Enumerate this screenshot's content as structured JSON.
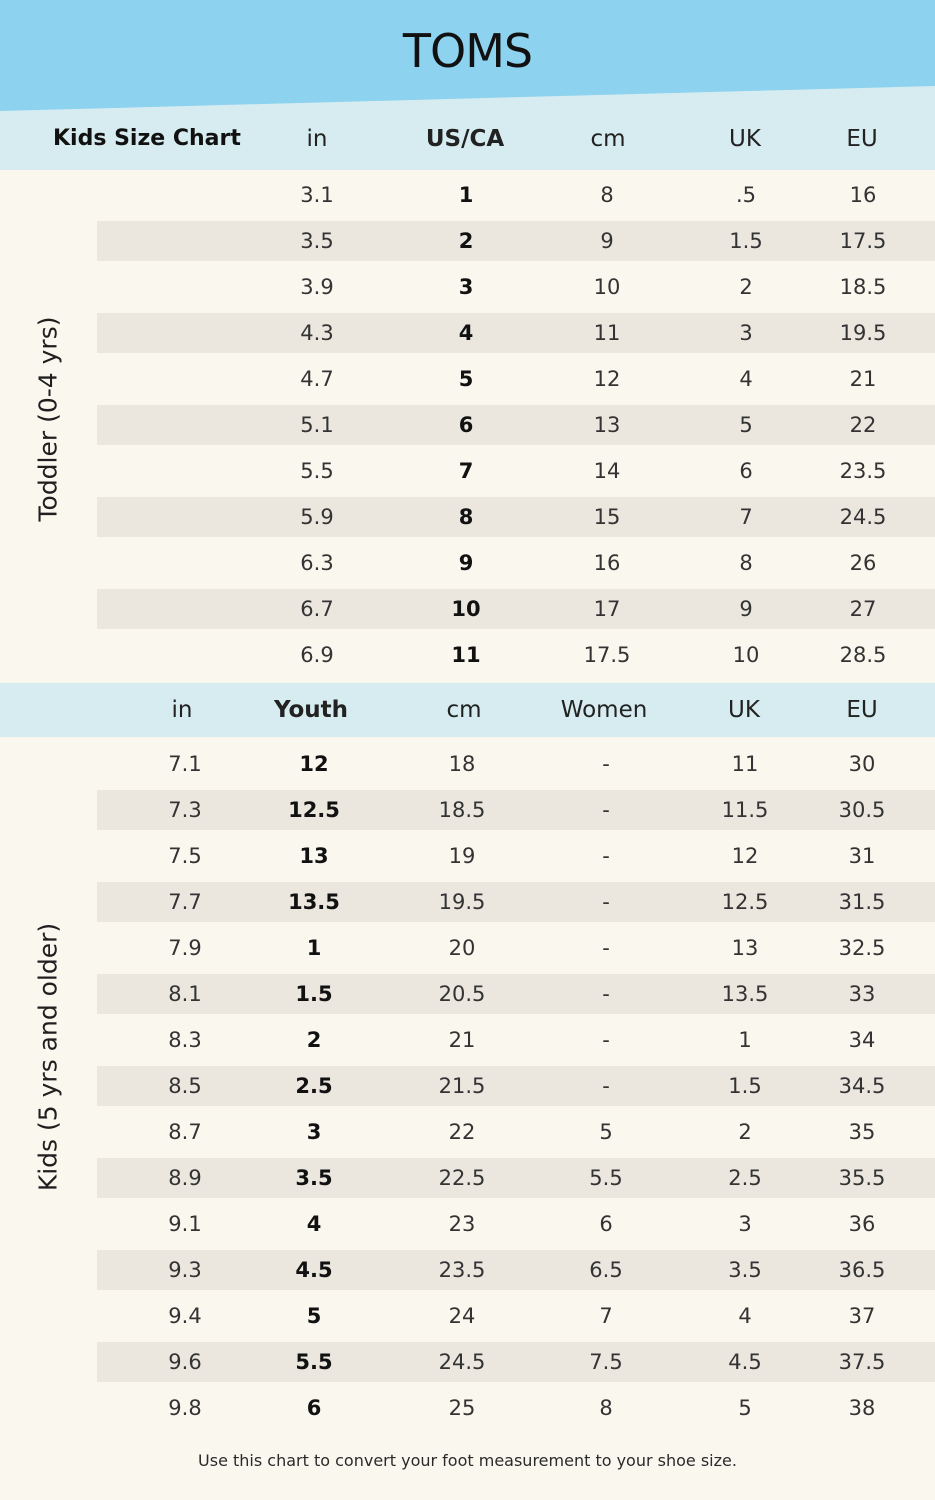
{
  "brand": "TOMS",
  "colors": {
    "banner_dark": "#8dd2ee",
    "banner_light": "#d6ecf0",
    "shade": "#ebe7df",
    "background": "#faf7ef"
  },
  "toddler": {
    "section_label": "Toddler (0-4 yrs)",
    "title": "Kids Size Chart",
    "headers": [
      "in",
      "US/CA",
      "cm",
      "UK",
      "EU"
    ],
    "rows": [
      [
        "3.1",
        "1",
        "8",
        ".5",
        "16"
      ],
      [
        "3.5",
        "2",
        "9",
        "1.5",
        "17.5"
      ],
      [
        "3.9",
        "3",
        "10",
        "2",
        "18.5"
      ],
      [
        "4.3",
        "4",
        "11",
        "3",
        "19.5"
      ],
      [
        "4.7",
        "5",
        "12",
        "4",
        "21"
      ],
      [
        "5.1",
        "6",
        "13",
        "5",
        "22"
      ],
      [
        "5.5",
        "7",
        "14",
        "6",
        "23.5"
      ],
      [
        "5.9",
        "8",
        "15",
        "7",
        "24.5"
      ],
      [
        "6.3",
        "9",
        "16",
        "8",
        "26"
      ],
      [
        "6.7",
        "10",
        "17",
        "9",
        "27"
      ],
      [
        "6.9",
        "11",
        "17.5",
        "10",
        "28.5"
      ]
    ]
  },
  "kids": {
    "section_label": "Kids (5 yrs and older)",
    "headers": [
      "in",
      "Youth",
      "cm",
      "Women",
      "UK",
      "EU"
    ],
    "rows": [
      [
        "7.1",
        "12",
        "18",
        "-",
        "11",
        "30"
      ],
      [
        "7.3",
        "12.5",
        "18.5",
        "-",
        "11.5",
        "30.5"
      ],
      [
        "7.5",
        "13",
        "19",
        "-",
        "12",
        "31"
      ],
      [
        "7.7",
        "13.5",
        "19.5",
        "-",
        "12.5",
        "31.5"
      ],
      [
        "7.9",
        "1",
        "20",
        "-",
        "13",
        "32.5"
      ],
      [
        "8.1",
        "1.5",
        "20.5",
        "-",
        "13.5",
        "33"
      ],
      [
        "8.3",
        "2",
        "21",
        "-",
        "1",
        "34"
      ],
      [
        "8.5",
        "2.5",
        "21.5",
        "-",
        "1.5",
        "34.5"
      ],
      [
        "8.7",
        "3",
        "22",
        "5",
        "2",
        "35"
      ],
      [
        "8.9",
        "3.5",
        "22.5",
        "5.5",
        "2.5",
        "35.5"
      ],
      [
        "9.1",
        "4",
        "23",
        "6",
        "3",
        "36"
      ],
      [
        "9.3",
        "4.5",
        "23.5",
        "6.5",
        "3.5",
        "36.5"
      ],
      [
        "9.4",
        "5",
        "24",
        "7",
        "4",
        "37"
      ],
      [
        "9.6",
        "5.5",
        "24.5",
        "7.5",
        "4.5",
        "37.5"
      ],
      [
        "9.8",
        "6",
        "25",
        "8",
        "5",
        "38"
      ]
    ]
  },
  "footer": "Use this chart to convert your foot measurement to your shoe size."
}
